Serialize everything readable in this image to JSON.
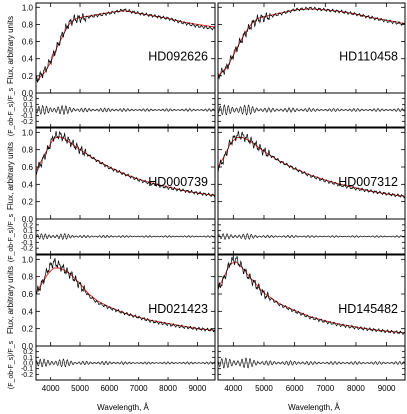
{
  "chart_data": {
    "type": "line",
    "xlabel": "Wavelength, Å",
    "ylabel_flux": "Flux, arbitrary units",
    "ylabel_resid": "(F_ob-F_s)/F_s",
    "xlim": [
      3500,
      9600
    ],
    "x_ticks": [
      4000,
      5000,
      6000,
      7000,
      8000,
      9000
    ],
    "flux_ylim": [
      0,
      1.05
    ],
    "flux_ticks": [
      "0.0",
      "0.2",
      "0.4",
      "0.6",
      "0.8",
      "1.0"
    ],
    "resid_ylim": [
      -0.3,
      0.3
    ],
    "resid_ticks": [
      "-0.2",
      "-0.1",
      "0.0",
      "0.1",
      "0.2"
    ],
    "colors": {
      "observed": "#000000",
      "model": "#e02020",
      "zero_line": "#8a8a8a"
    },
    "panels": [
      {
        "label": "HD092626",
        "x": [
          3500,
          3800,
          4000,
          4200,
          4400,
          4600,
          4800,
          5000,
          5500,
          6000,
          6500,
          7000,
          7500,
          8000,
          8500,
          9000,
          9600
        ],
        "observed": [
          0.14,
          0.26,
          0.38,
          0.52,
          0.68,
          0.8,
          0.86,
          0.87,
          0.9,
          0.93,
          0.97,
          0.93,
          0.9,
          0.87,
          0.82,
          0.78,
          0.75
        ],
        "model": [
          0.14,
          0.24,
          0.36,
          0.52,
          0.66,
          0.79,
          0.86,
          0.88,
          0.91,
          0.94,
          0.96,
          0.93,
          0.9,
          0.87,
          0.83,
          0.8,
          0.77
        ],
        "residual_amp": 0.08
      },
      {
        "label": "HD110458",
        "x": [
          3500,
          3800,
          4000,
          4200,
          4400,
          4600,
          4800,
          5000,
          5500,
          6000,
          6500,
          7000,
          7500,
          8000,
          8500,
          9000,
          9600
        ],
        "observed": [
          0.2,
          0.3,
          0.45,
          0.58,
          0.7,
          0.8,
          0.86,
          0.88,
          0.92,
          0.97,
          0.99,
          0.97,
          0.95,
          0.92,
          0.88,
          0.84,
          0.8
        ],
        "model": [
          0.2,
          0.3,
          0.44,
          0.58,
          0.71,
          0.81,
          0.87,
          0.89,
          0.93,
          0.97,
          0.98,
          0.97,
          0.95,
          0.92,
          0.88,
          0.85,
          0.81
        ],
        "residual_amp": 0.09
      },
      {
        "label": "HD000739",
        "x": [
          3500,
          3700,
          3900,
          4100,
          4300,
          4500,
          4700,
          5000,
          5500,
          6000,
          6500,
          7000,
          7500,
          8000,
          8500,
          9000,
          9600
        ],
        "observed": [
          0.55,
          0.66,
          0.8,
          0.95,
          0.97,
          0.93,
          0.88,
          0.8,
          0.69,
          0.59,
          0.52,
          0.45,
          0.4,
          0.36,
          0.33,
          0.3,
          0.27
        ],
        "model": [
          0.56,
          0.68,
          0.81,
          0.93,
          0.95,
          0.92,
          0.87,
          0.8,
          0.69,
          0.6,
          0.52,
          0.46,
          0.41,
          0.37,
          0.33,
          0.3,
          0.27
        ],
        "residual_amp": 0.05
      },
      {
        "label": "HD007312",
        "x": [
          3500,
          3700,
          3900,
          4100,
          4300,
          4500,
          4700,
          5000,
          5500,
          6000,
          6500,
          7000,
          7500,
          8000,
          8500,
          9000,
          9600
        ],
        "observed": [
          0.58,
          0.7,
          0.88,
          0.96,
          0.96,
          0.92,
          0.86,
          0.78,
          0.67,
          0.58,
          0.5,
          0.44,
          0.39,
          0.35,
          0.32,
          0.29,
          0.26
        ],
        "model": [
          0.6,
          0.72,
          0.87,
          0.94,
          0.94,
          0.91,
          0.86,
          0.78,
          0.67,
          0.58,
          0.51,
          0.45,
          0.4,
          0.36,
          0.32,
          0.29,
          0.26
        ],
        "residual_amp": 0.05
      },
      {
        "label": "HD021423",
        "x": [
          3500,
          3700,
          3900,
          4100,
          4300,
          4500,
          4700,
          5000,
          5300,
          5600,
          6000,
          6500,
          7000,
          7500,
          8000,
          8500,
          9000,
          9600
        ],
        "observed": [
          0.6,
          0.72,
          0.88,
          0.97,
          0.93,
          0.87,
          0.82,
          0.7,
          0.58,
          0.5,
          0.44,
          0.38,
          0.33,
          0.28,
          0.25,
          0.22,
          0.2,
          0.18
        ],
        "model": [
          0.62,
          0.72,
          0.83,
          0.9,
          0.9,
          0.87,
          0.82,
          0.72,
          0.6,
          0.52,
          0.45,
          0.38,
          0.33,
          0.29,
          0.26,
          0.23,
          0.2,
          0.18
        ],
        "residual_amp": 0.07
      },
      {
        "label": "HD145482",
        "x": [
          3500,
          3700,
          3900,
          4100,
          4300,
          4500,
          4700,
          5000,
          5500,
          6000,
          6500,
          7000,
          7500,
          8000,
          8500,
          9000,
          9600
        ],
        "observed": [
          0.65,
          0.78,
          0.97,
          1.0,
          0.9,
          0.8,
          0.72,
          0.6,
          0.48,
          0.4,
          0.33,
          0.28,
          0.24,
          0.21,
          0.19,
          0.17,
          0.15
        ],
        "model": [
          0.66,
          0.8,
          0.95,
          0.97,
          0.9,
          0.81,
          0.73,
          0.61,
          0.49,
          0.41,
          0.34,
          0.29,
          0.25,
          0.22,
          0.19,
          0.17,
          0.15
        ],
        "residual_amp": 0.09
      }
    ]
  }
}
